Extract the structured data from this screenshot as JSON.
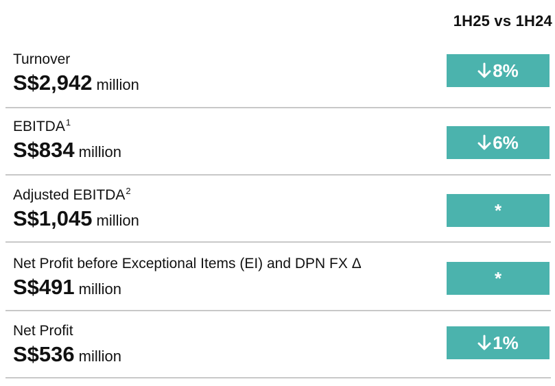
{
  "header": {
    "comparison_label": "1H25 vs 1H24"
  },
  "metrics": [
    {
      "label": "Turnover",
      "footnote": "",
      "amount": "S$2,942",
      "unit": "million",
      "change": "8%",
      "change_direction": "down",
      "change_icon": "arrow-down-icon"
    },
    {
      "label": "EBITDA",
      "footnote": "1",
      "amount": "S$834",
      "unit": "million",
      "change": "6%",
      "change_direction": "down",
      "change_icon": "arrow-down-icon"
    },
    {
      "label": "Adjusted EBITDA",
      "footnote": "2",
      "amount": "S$1,045",
      "unit": "million",
      "change": "*",
      "change_direction": "none",
      "change_icon": ""
    },
    {
      "label": "Net Profit before Exceptional Items (EI) and DPN FX Δ",
      "footnote": "",
      "amount": "S$491",
      "unit": "million",
      "change": "*",
      "change_direction": "none",
      "change_icon": ""
    },
    {
      "label": "Net Profit",
      "footnote": "",
      "amount": "S$536",
      "unit": "million",
      "change": "1%",
      "change_direction": "down",
      "change_icon": "arrow-down-icon"
    }
  ],
  "colors": {
    "badge_background": "#4bb3ad",
    "badge_text": "#ffffff",
    "divider": "#c8c8c8"
  }
}
